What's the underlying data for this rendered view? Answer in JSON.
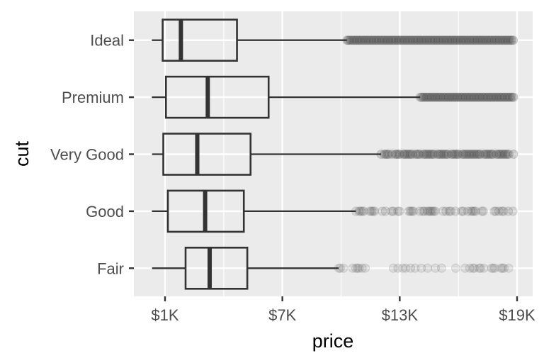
{
  "chart_data": {
    "type": "boxplot",
    "orientation": "horizontal",
    "title": "",
    "xlabel": "price",
    "ylabel": "cut",
    "xlim": [
      -200,
      19800
    ],
    "x_ticks": [
      1000,
      7000,
      13000,
      19000
    ],
    "x_tick_labels": [
      "$1K",
      "$7K",
      "$13K",
      "$19K"
    ],
    "x_minor_gridlines": [
      4000,
      10000,
      16000
    ],
    "grid": true,
    "legend": null,
    "categories": [
      "Ideal",
      "Premium",
      "Very Good",
      "Good",
      "Fair"
    ],
    "series": [
      {
        "name": "Ideal",
        "whisker_low": 326,
        "q1": 878,
        "median": 1810,
        "q3": 4678,
        "whisker_high": 10300,
        "outlier_range": [
          10300,
          18806
        ],
        "outlier_density": 1.0
      },
      {
        "name": "Premium",
        "whisker_low": 326,
        "q1": 1046,
        "median": 3185,
        "q3": 6296,
        "whisker_high": 14050,
        "outlier_range": [
          14050,
          18823
        ],
        "outlier_density": 1.0
      },
      {
        "name": "Very Good",
        "whisker_low": 336,
        "q1": 912,
        "median": 2648,
        "q3": 5373,
        "whisker_high": 12050,
        "outlier_range": [
          12050,
          18818
        ],
        "outlier_density": 0.85
      },
      {
        "name": "Good",
        "whisker_low": 327,
        "q1": 1145,
        "median": 3050,
        "q3": 5028,
        "whisker_high": 10760,
        "outlier_range": [
          10760,
          18788
        ],
        "outlier_density": 0.45
      },
      {
        "name": "Fair",
        "whisker_low": 337,
        "q1": 2050,
        "median": 3282,
        "q3": 5206,
        "whisker_high": 9880,
        "outlier_range": [
          9880,
          18574
        ],
        "outlier_density": 0.25
      }
    ],
    "colors": {
      "panel_background": "#ebebeb",
      "gridline": "#ffffff",
      "box_line": "#333333",
      "outlier": "#333333",
      "tick_label": "#4d4d4d",
      "axis_title": "#000000"
    }
  }
}
